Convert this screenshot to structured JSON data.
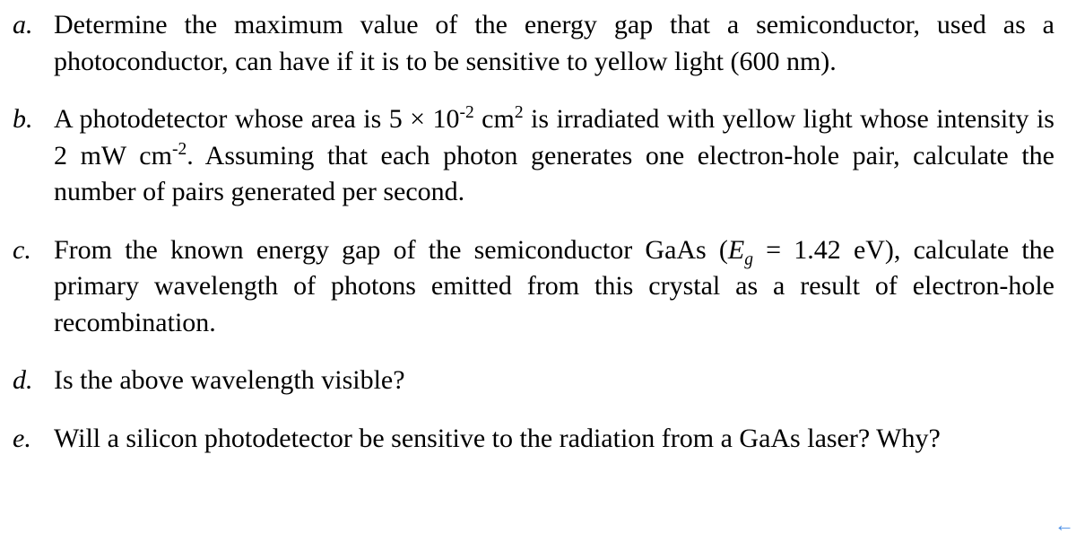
{
  "questions": {
    "a": {
      "marker": "a.",
      "text": "Determine the maximum value of the energy gap that a semiconductor, used as a photoconductor, can have if it is to be sensitive to yellow light (600 nm)."
    },
    "b": {
      "marker": "b.",
      "seg1": "A photodetector whose area is 5 × 10",
      "exp1": "-2",
      "seg2": " cm",
      "exp2": "2",
      "seg3": " is irradiated with yellow light whose intensity is 2 mW cm",
      "exp3": "-2",
      "seg4": ".  Assuming that each photon generates one electron-hole pair, calculate the number of pairs generated per second."
    },
    "c": {
      "marker": "c.",
      "seg1": "From the known energy gap of the semiconductor GaAs (",
      "eg_e": "E",
      "eg_sub": "g",
      "seg2": " = 1.42 eV), calculate the primary wavelength of photons emitted from this crystal as a result of electron-hole recombination."
    },
    "d": {
      "marker": "d.",
      "text": "Is the above wavelength visible?"
    },
    "e": {
      "marker": "e.",
      "text": "Will a silicon photodetector be sensitive to the radiation from a GaAs laser?  Why?"
    }
  },
  "arrow_glyph": "←"
}
